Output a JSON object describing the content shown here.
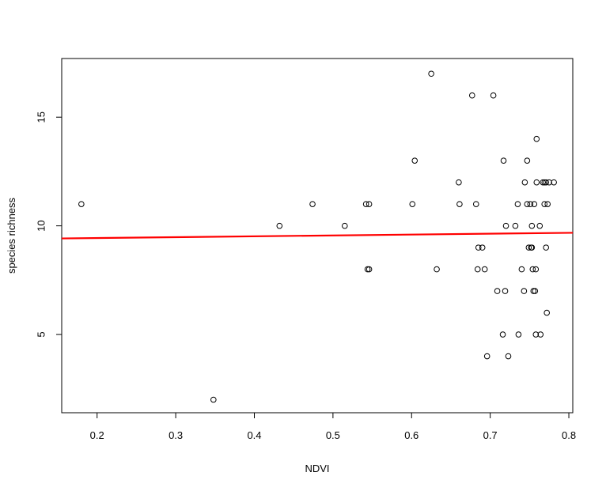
{
  "chart_data": {
    "type": "scatter",
    "title": "",
    "xlabel": "NDVI",
    "ylabel": "species richness",
    "xlim": [
      0.155,
      0.805
    ],
    "ylim": [
      1.4,
      17.7
    ],
    "x_ticks": [
      0.2,
      0.3,
      0.4,
      0.5,
      0.6,
      0.7,
      0.8
    ],
    "x_tick_labels": [
      "0.2",
      "0.3",
      "0.4",
      "0.5",
      "0.6",
      "0.7",
      "0.8"
    ],
    "y_ticks": [
      5,
      10,
      15
    ],
    "y_tick_labels": [
      "5",
      "10",
      "15"
    ],
    "grid": false,
    "point_style": "open-circle",
    "point_color": "#000000",
    "trend_color": "#ff0000",
    "series": [
      {
        "values": [
          {
            "x": 0.18,
            "y": 11
          },
          {
            "x": 0.348,
            "y": 2
          },
          {
            "x": 0.432,
            "y": 10
          },
          {
            "x": 0.474,
            "y": 11
          },
          {
            "x": 0.515,
            "y": 10
          },
          {
            "x": 0.542,
            "y": 11
          },
          {
            "x": 0.546,
            "y": 11
          },
          {
            "x": 0.544,
            "y": 8
          },
          {
            "x": 0.546,
            "y": 8
          },
          {
            "x": 0.601,
            "y": 11
          },
          {
            "x": 0.604,
            "y": 13
          },
          {
            "x": 0.625,
            "y": 17
          },
          {
            "x": 0.632,
            "y": 8
          },
          {
            "x": 0.66,
            "y": 12
          },
          {
            "x": 0.661,
            "y": 11
          },
          {
            "x": 0.677,
            "y": 16
          },
          {
            "x": 0.682,
            "y": 11
          },
          {
            "x": 0.685,
            "y": 9
          },
          {
            "x": 0.69,
            "y": 9
          },
          {
            "x": 0.684,
            "y": 8
          },
          {
            "x": 0.693,
            "y": 8
          },
          {
            "x": 0.696,
            "y": 4
          },
          {
            "x": 0.704,
            "y": 16
          },
          {
            "x": 0.709,
            "y": 7
          },
          {
            "x": 0.717,
            "y": 13
          },
          {
            "x": 0.72,
            "y": 10
          },
          {
            "x": 0.719,
            "y": 7
          },
          {
            "x": 0.716,
            "y": 5
          },
          {
            "x": 0.723,
            "y": 4
          },
          {
            "x": 0.732,
            "y": 10
          },
          {
            "x": 0.735,
            "y": 11
          },
          {
            "x": 0.736,
            "y": 5
          },
          {
            "x": 0.74,
            "y": 8
          },
          {
            "x": 0.743,
            "y": 7
          },
          {
            "x": 0.744,
            "y": 12
          },
          {
            "x": 0.747,
            "y": 13
          },
          {
            "x": 0.747,
            "y": 11
          },
          {
            "x": 0.749,
            "y": 9
          },
          {
            "x": 0.751,
            "y": 11
          },
          {
            "x": 0.752,
            "y": 9
          },
          {
            "x": 0.753,
            "y": 9
          },
          {
            "x": 0.753,
            "y": 10
          },
          {
            "x": 0.754,
            "y": 8
          },
          {
            "x": 0.755,
            "y": 7
          },
          {
            "x": 0.756,
            "y": 11
          },
          {
            "x": 0.757,
            "y": 7
          },
          {
            "x": 0.758,
            "y": 8
          },
          {
            "x": 0.759,
            "y": 14
          },
          {
            "x": 0.759,
            "y": 12
          },
          {
            "x": 0.758,
            "y": 5
          },
          {
            "x": 0.763,
            "y": 10
          },
          {
            "x": 0.764,
            "y": 5
          },
          {
            "x": 0.767,
            "y": 12
          },
          {
            "x": 0.769,
            "y": 12
          },
          {
            "x": 0.769,
            "y": 11
          },
          {
            "x": 0.771,
            "y": 12
          },
          {
            "x": 0.771,
            "y": 9
          },
          {
            "x": 0.772,
            "y": 6
          },
          {
            "x": 0.773,
            "y": 11
          },
          {
            "x": 0.775,
            "y": 12
          },
          {
            "x": 0.781,
            "y": 12
          }
        ]
      }
    ],
    "trend_line": {
      "x": [
        0.155,
        0.805
      ],
      "y": [
        9.42,
        9.68
      ]
    }
  }
}
